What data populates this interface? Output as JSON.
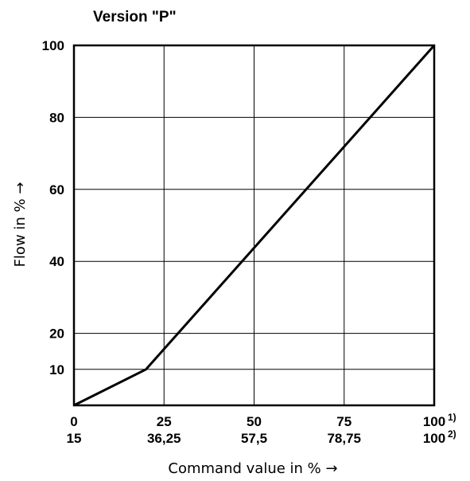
{
  "chart_data": {
    "type": "line",
    "title": "Version \"P\"",
    "xlabel": "Command value in % →",
    "ylabel": "Flow in % →",
    "xlim": [
      0,
      100
    ],
    "ylim": [
      0,
      100
    ],
    "grid": true,
    "x_ticks_primary": [
      "0",
      "25",
      "50",
      "75",
      "100"
    ],
    "x_ticks_secondary": [
      "15",
      "36,25",
      "57,5",
      "78,75",
      "100"
    ],
    "x_tick_footnotes": [
      "1)",
      "2)"
    ],
    "y_ticks": [
      "10",
      "20",
      "40",
      "60",
      "80",
      "100"
    ],
    "y_tick_values": [
      10,
      20,
      40,
      60,
      80,
      100
    ],
    "x_tick_values": [
      0,
      25,
      50,
      75,
      100
    ],
    "series": [
      {
        "x": [
          0,
          20,
          100
        ],
        "y": [
          0,
          10,
          100
        ]
      }
    ]
  }
}
